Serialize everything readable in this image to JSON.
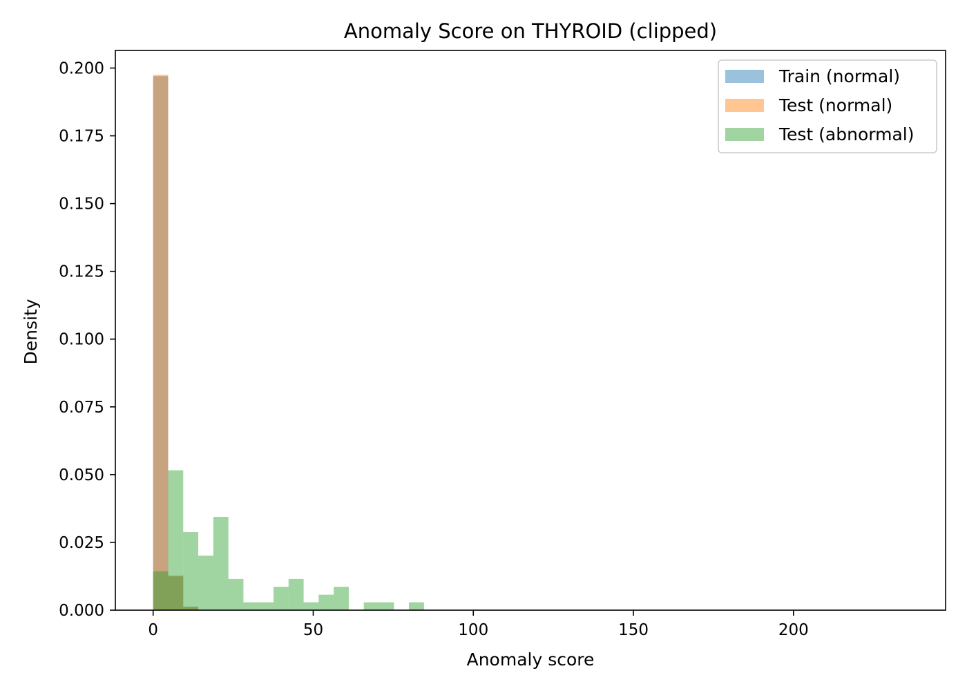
{
  "chart_data": {
    "type": "histogram",
    "title": "Anomaly Score on THYROID (clipped)",
    "xlabel": "Anomaly score",
    "ylabel": "Density",
    "xlim": [
      -11.8,
      247.5
    ],
    "ylim": [
      0,
      0.2065
    ],
    "xticks": [
      {
        "value": 0,
        "label": "0"
      },
      {
        "value": 50,
        "label": "50"
      },
      {
        "value": 100,
        "label": "100"
      },
      {
        "value": 150,
        "label": "150"
      },
      {
        "value": 200,
        "label": "200"
      }
    ],
    "yticks": [
      {
        "value": 0,
        "label": "0.000"
      },
      {
        "value": 0.025,
        "label": "0.025"
      },
      {
        "value": 0.05,
        "label": "0.050"
      },
      {
        "value": 0.075,
        "label": "0.075"
      },
      {
        "value": 0.1,
        "label": "0.100"
      },
      {
        "value": 0.125,
        "label": "0.125"
      },
      {
        "value": 0.15,
        "label": "0.150"
      },
      {
        "value": 0.175,
        "label": "0.175"
      },
      {
        "value": 0.2,
        "label": "0.200"
      }
    ],
    "grid": false,
    "legend_position": "top-right",
    "series": [
      {
        "name": "Train (normal)",
        "color": "#1f77b4",
        "alpha": 0.45,
        "bins": [
          {
            "x0": 0,
            "x1": 4.7,
            "density": 0.197
          },
          {
            "x0": 4.7,
            "x1": 9.4,
            "density": 0.0125
          },
          {
            "x0": 9.4,
            "x1": 14.1,
            "density": 0.0012
          }
        ]
      },
      {
        "name": "Test (normal)",
        "color": "#ff7f0e",
        "alpha": 0.45,
        "bins": [
          {
            "x0": 0,
            "x1": 4.7,
            "density": 0.1975
          },
          {
            "x0": 4.7,
            "x1": 9.4,
            "density": 0.0128
          },
          {
            "x0": 9.4,
            "x1": 14.1,
            "density": 0.0013
          }
        ]
      },
      {
        "name": "Test (abnormal)",
        "color": "#2ca02c",
        "alpha": 0.45,
        "bins": [
          {
            "x0": 0,
            "x1": 4.7,
            "density": 0.0143
          },
          {
            "x0": 4.7,
            "x1": 9.4,
            "density": 0.0516
          },
          {
            "x0": 9.4,
            "x1": 14.1,
            "density": 0.0288
          },
          {
            "x0": 14.1,
            "x1": 18.8,
            "density": 0.0201
          },
          {
            "x0": 18.8,
            "x1": 23.5,
            "density": 0.0344
          },
          {
            "x0": 23.5,
            "x1": 28.2,
            "density": 0.0115
          },
          {
            "x0": 28.2,
            "x1": 32.9,
            "density": 0.0029
          },
          {
            "x0": 32.9,
            "x1": 37.6,
            "density": 0.0029
          },
          {
            "x0": 37.6,
            "x1": 42.3,
            "density": 0.0086
          },
          {
            "x0": 42.3,
            "x1": 47.0,
            "density": 0.0115
          },
          {
            "x0": 47.0,
            "x1": 51.7,
            "density": 0.0029
          },
          {
            "x0": 51.7,
            "x1": 56.4,
            "density": 0.0057
          },
          {
            "x0": 56.4,
            "x1": 61.1,
            "density": 0.0086
          },
          {
            "x0": 65.8,
            "x1": 70.5,
            "density": 0.0029
          },
          {
            "x0": 70.5,
            "x1": 75.2,
            "density": 0.0029
          },
          {
            "x0": 79.9,
            "x1": 84.6,
            "density": 0.0029
          }
        ]
      }
    ]
  }
}
